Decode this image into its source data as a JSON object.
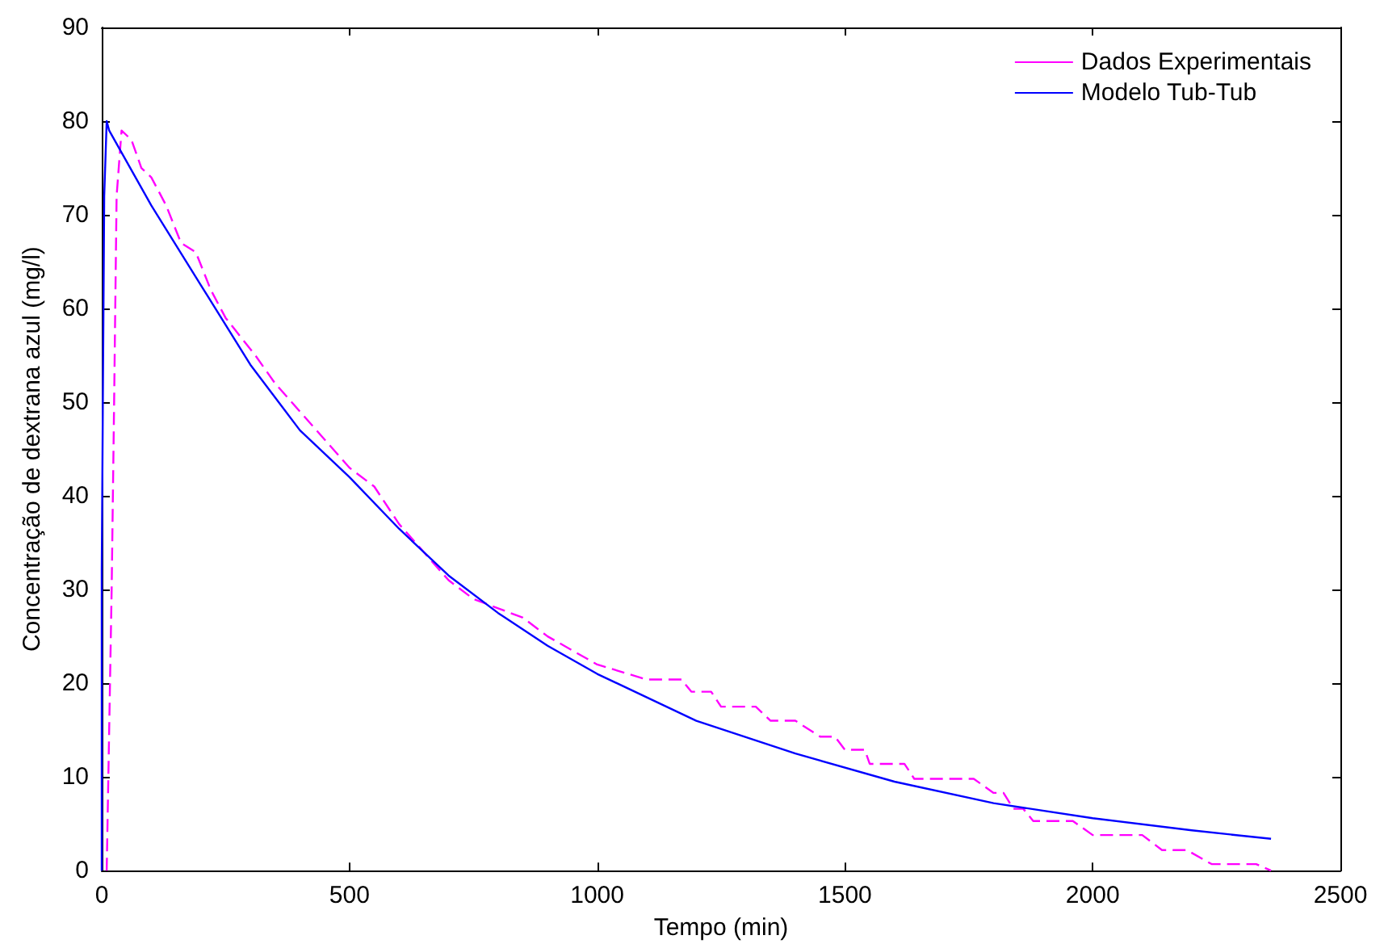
{
  "chart_data": {
    "type": "line",
    "xlabel": "Tempo (min)",
    "ylabel": "Concentração de dextrana azul (mg/l)",
    "xlim": [
      0,
      2500
    ],
    "xticks": [
      0,
      500,
      1000,
      1500,
      2000,
      2500
    ],
    "ylim": [
      0,
      90
    ],
    "yticks": [
      0,
      10,
      20,
      30,
      40,
      50,
      60,
      70,
      80,
      90
    ],
    "grid": false,
    "legend": "top right",
    "marker": "none",
    "series": [
      {
        "name": "Dados Experimentais",
        "color": "#ff00ff",
        "line_style": "dashed",
        "x": [
          10,
          20,
          25,
          30,
          40,
          60,
          80,
          100,
          130,
          160,
          190,
          220,
          250,
          280,
          310,
          350,
          400,
          450,
          500,
          550,
          600,
          650,
          700,
          750,
          800,
          850,
          900,
          950,
          1000,
          1100,
          1170,
          1190,
          1230,
          1250,
          1320,
          1350,
          1400,
          1450,
          1480,
          1500,
          1540,
          1550,
          1620,
          1640,
          1760,
          1800,
          1820,
          1840,
          1860,
          1880,
          1960,
          2000,
          2100,
          2140,
          2190,
          2240,
          2330,
          2360
        ],
        "values": [
          0,
          30,
          50,
          72,
          79,
          78,
          75,
          74,
          71,
          67,
          66,
          62,
          59,
          57,
          55,
          52,
          49,
          46,
          43,
          41,
          37,
          34,
          31,
          29,
          28,
          27,
          25,
          23.5,
          22,
          20.4,
          20.4,
          19.1,
          19.1,
          17.5,
          17.5,
          16,
          16,
          14.3,
          14.3,
          12.9,
          12.9,
          11.4,
          11.4,
          9.8,
          9.8,
          8.3,
          8.3,
          6.6,
          6.6,
          5.3,
          5.3,
          3.8,
          3.8,
          2.2,
          2.2,
          0.7,
          0.7,
          0
        ]
      },
      {
        "name": "Modelo Tub-Tub",
        "color": "#0000ff",
        "line_style": "solid",
        "x": [
          0,
          0,
          5,
          10,
          15,
          100,
          200,
          300,
          400,
          500,
          600,
          700,
          800,
          900,
          1000,
          1200,
          1400,
          1600,
          1800,
          2000,
          2200,
          2360
        ],
        "values": [
          0,
          32,
          72,
          80,
          79,
          71,
          62.5,
          54,
          47,
          42,
          36.5,
          31.5,
          27.5,
          24,
          21,
          16,
          12.5,
          9.5,
          7.2,
          5.6,
          4.3,
          3.4
        ]
      }
    ]
  }
}
